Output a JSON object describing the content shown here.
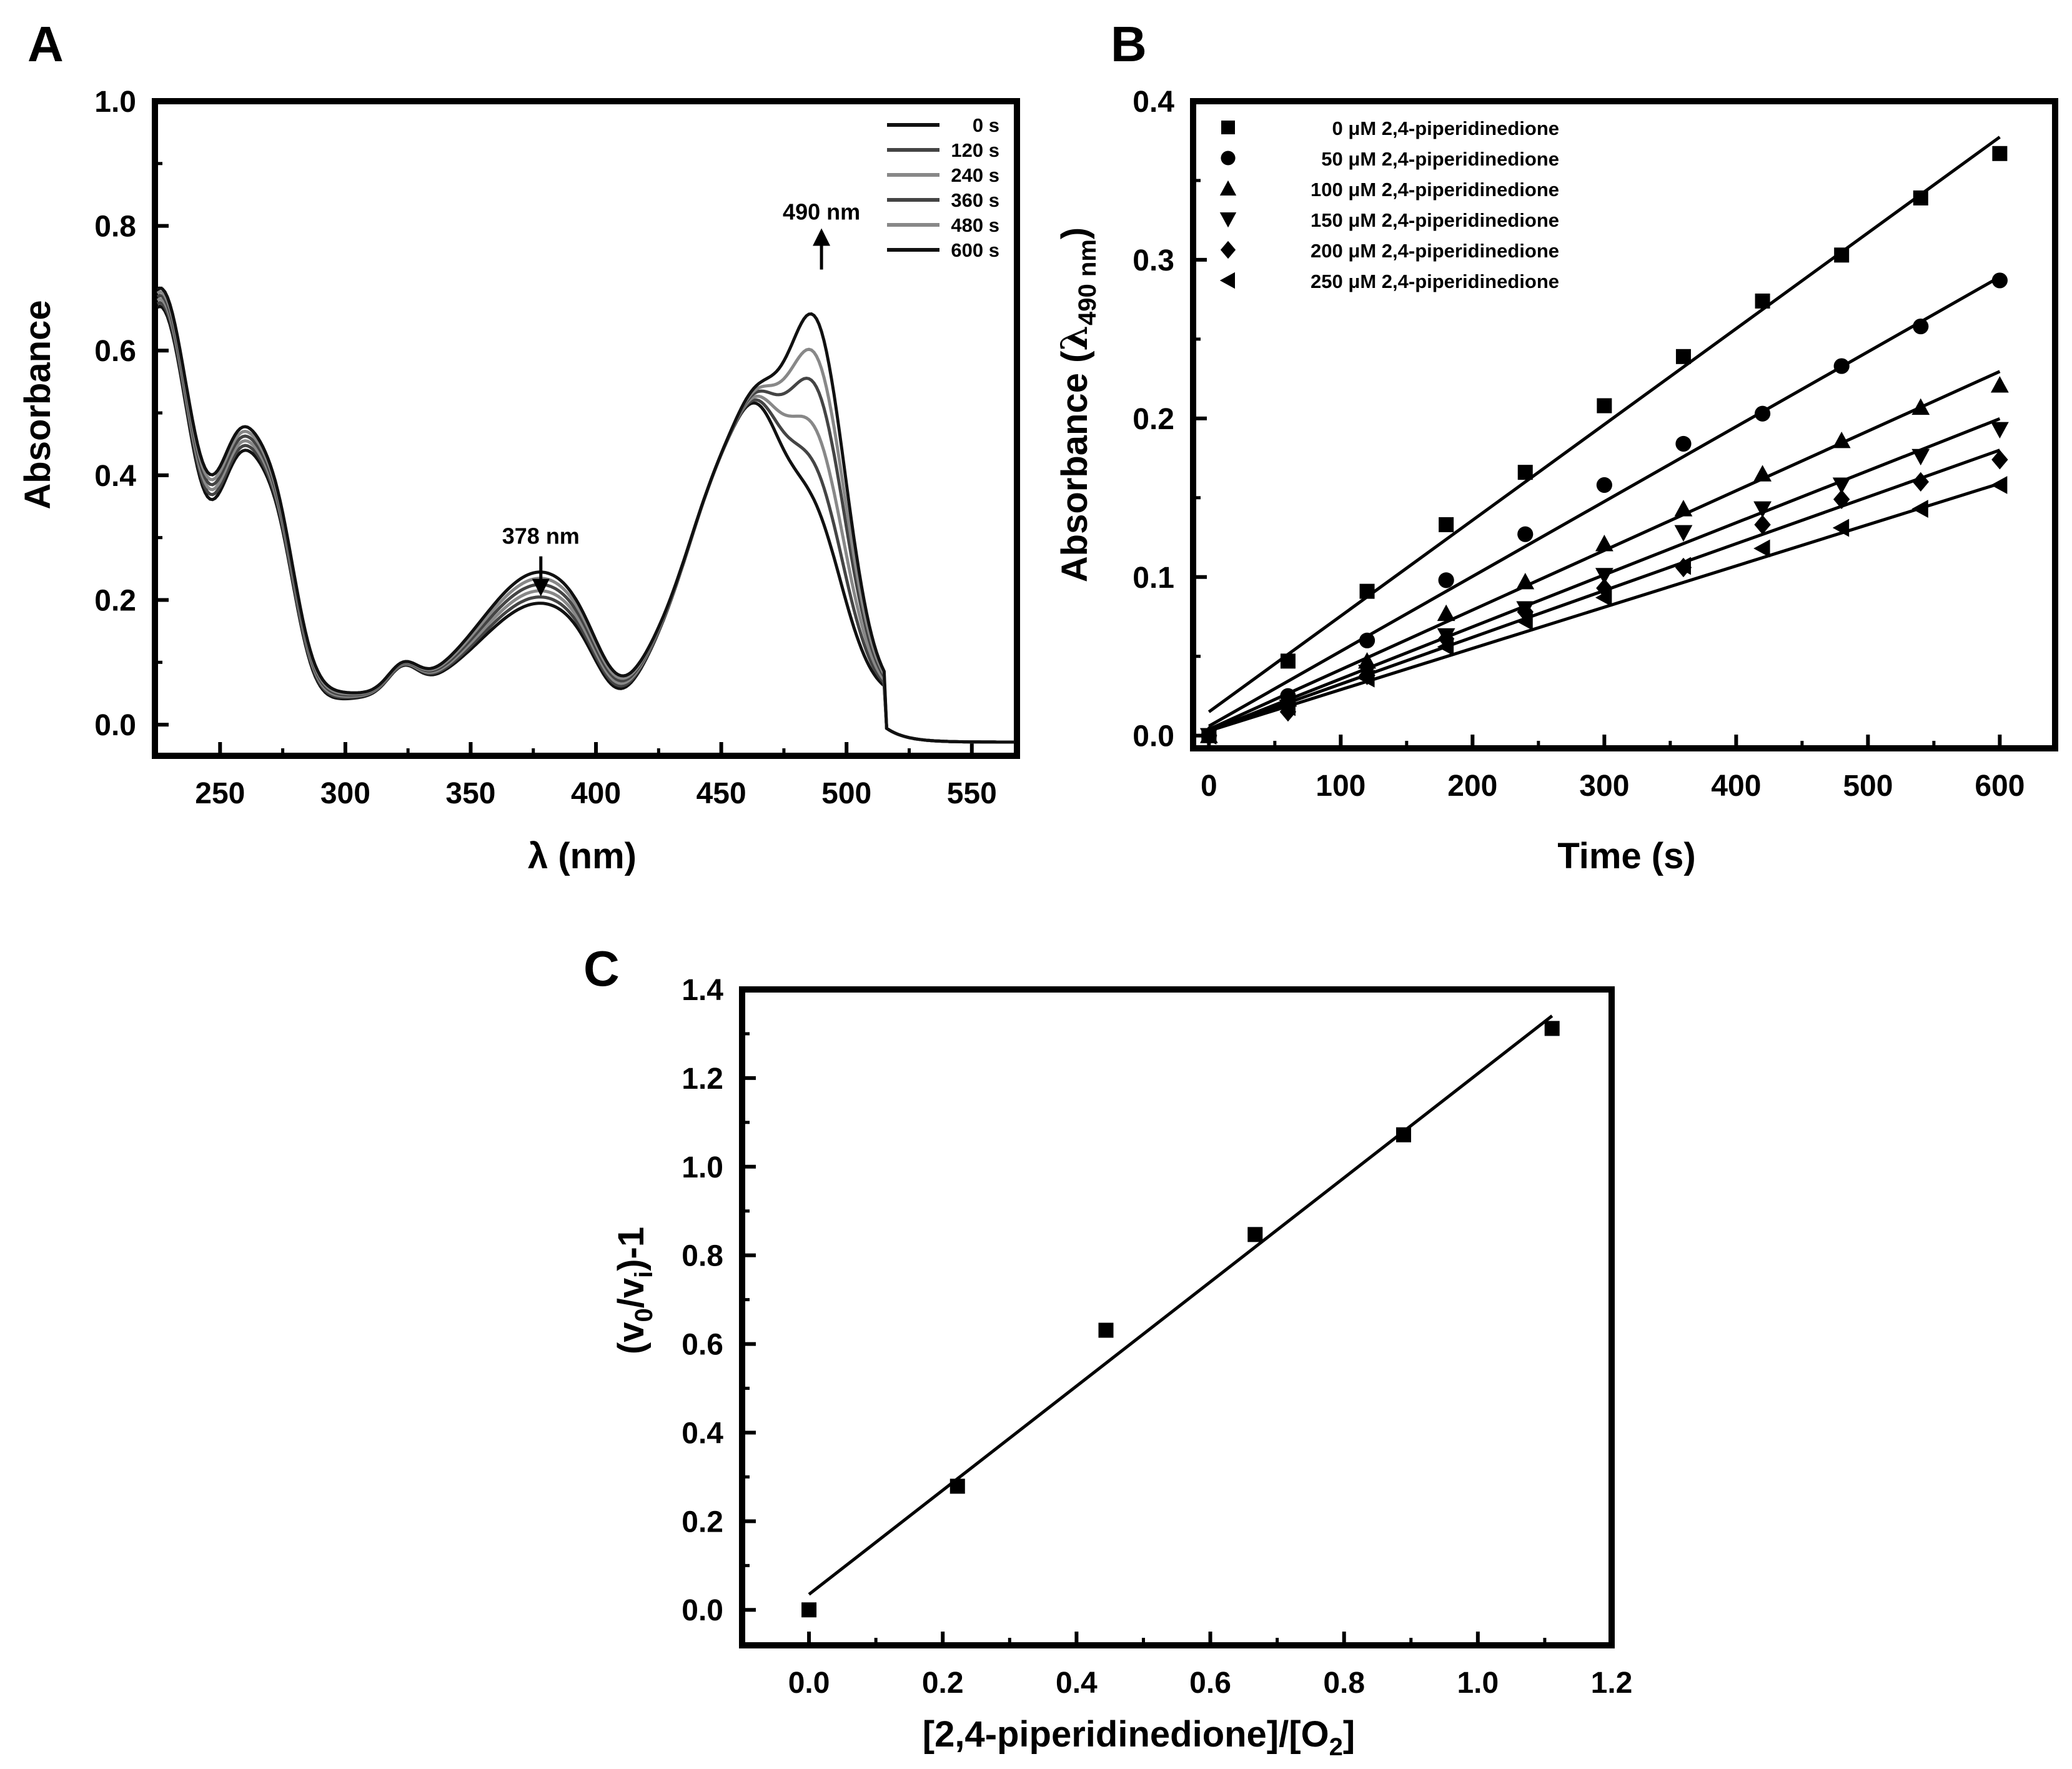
{
  "panels": {
    "A": {
      "letter": "A"
    },
    "B": {
      "letter": "B"
    },
    "C": {
      "letter": "C"
    }
  },
  "chart_data": [
    {
      "panel": "A",
      "type": "line",
      "xlabel": "λ (nm)",
      "ylabel": "Absorbance",
      "xlim": [
        224,
        568
      ],
      "ylim": [
        -0.05,
        1.0
      ],
      "xticks": [
        250,
        300,
        350,
        400,
        450,
        500,
        550
      ],
      "yticks": [
        0.0,
        0.2,
        0.4,
        0.6,
        0.8,
        1.0
      ],
      "ytick_labels": [
        "0.0",
        "0.2",
        "0.4",
        "0.6",
        "0.8",
        "1.0"
      ],
      "legend_position": "top-right",
      "series": [
        {
          "name": "0 s",
          "color": "#111111",
          "peak490": 0.35,
          "band378": 0.15
        },
        {
          "name": "120 s",
          "color": "#444444",
          "peak490": 0.41,
          "band378": 0.16
        },
        {
          "name": "240 s",
          "color": "#888888",
          "peak490": 0.47,
          "band378": 0.17
        },
        {
          "name": "360 s",
          "color": "#444444",
          "peak490": 0.54,
          "band378": 0.18
        },
        {
          "name": "480 s",
          "color": "#888888",
          "peak490": 0.59,
          "band378": 0.19
        },
        {
          "name": "600 s",
          "color": "#111111",
          "peak490": 0.65,
          "band378": 0.2
        }
      ],
      "annotations": [
        {
          "text": "490 nm",
          "x": 490,
          "y": 0.75,
          "arrow": "up"
        },
        {
          "text": "378 nm",
          "x": 378,
          "y": 0.3,
          "arrow": "down"
        }
      ]
    },
    {
      "panel": "B",
      "type": "scatter",
      "xlabel": "Time (s)",
      "ylabel_main": "Absorbance (",
      "ylabel_sym": "λ",
      "ylabel_sub": "490 nm",
      "ylabel_close": ")",
      "xlim": [
        -12,
        642
      ],
      "ylim": [
        -0.008,
        0.4
      ],
      "xticks": [
        0,
        100,
        200,
        300,
        400,
        500,
        600
      ],
      "yticks": [
        0.0,
        0.1,
        0.2,
        0.3,
        0.4
      ],
      "ytick_labels": [
        "0.0",
        "0.1",
        "0.2",
        "0.3",
        "0.4"
      ],
      "legend_position": "top-left",
      "x": [
        0,
        60,
        120,
        180,
        240,
        300,
        360,
        420,
        480,
        540,
        600
      ],
      "series": [
        {
          "name": "0 μM 2,4-piperidinedione",
          "marker": "square",
          "values": [
            0.0,
            0.047,
            0.091,
            0.133,
            0.166,
            0.208,
            0.239,
            0.274,
            0.303,
            0.339,
            0.367
          ],
          "fit": [
            0.015,
            0.000604
          ]
        },
        {
          "name": "50 μM 2,4-piperidinedione",
          "marker": "circle",
          "values": [
            0.0,
            0.025,
            0.06,
            0.098,
            0.127,
            0.158,
            0.184,
            0.203,
            0.233,
            0.258,
            0.287
          ],
          "fit": [
            0.006,
            0.000472
          ]
        },
        {
          "name": "100 μM 2,4-piperidinedione",
          "marker": "triangle-up",
          "values": [
            0.0,
            0.023,
            0.047,
            0.077,
            0.097,
            0.121,
            0.143,
            0.165,
            0.186,
            0.207,
            0.221
          ],
          "fit": [
            0.004,
            0.000376
          ]
        },
        {
          "name": "150 μM 2,4-piperidinedione",
          "marker": "triangle-down",
          "values": [
            0.0,
            0.018,
            0.04,
            0.063,
            0.08,
            0.101,
            0.128,
            0.143,
            0.158,
            0.176,
            0.193
          ],
          "fit": [
            0.003,
            0.000328
          ]
        },
        {
          "name": "200 μM 2,4-piperidinedione",
          "marker": "diamond",
          "values": [
            0.0,
            0.015,
            0.038,
            0.061,
            0.078,
            0.093,
            0.106,
            0.133,
            0.149,
            0.16,
            0.174
          ],
          "fit": [
            0.003,
            0.000295
          ]
        },
        {
          "name": "250 μM 2,4-piperidinedione",
          "marker": "triangle-left",
          "values": [
            0.0,
            0.018,
            0.036,
            0.056,
            0.072,
            0.087,
            0.107,
            0.118,
            0.131,
            0.143,
            0.158
          ],
          "fit": [
            0.003,
            0.00026
          ]
        }
      ]
    },
    {
      "panel": "C",
      "type": "scatter",
      "xlabel_main": "[2,4-piperidinedione]/[O",
      "xlabel_sub": "2",
      "xlabel_close": "]",
      "ylabel_a": "(v",
      "ylabel_sub0": "0",
      "ylabel_b": "/v",
      "ylabel_subi": "i",
      "ylabel_c": ")-1",
      "xlim": [
        -0.1,
        1.2
      ],
      "ylim": [
        -0.08,
        1.4
      ],
      "xticks": [
        0.0,
        0.2,
        0.4,
        0.6,
        0.8,
        1.0,
        1.2
      ],
      "xtick_labels": [
        "0.0",
        "0.2",
        "0.4",
        "0.6",
        "0.8",
        "1.0",
        "1.2"
      ],
      "yticks": [
        0.0,
        0.2,
        0.4,
        0.6,
        0.8,
        1.0,
        1.2,
        1.4
      ],
      "ytick_labels": [
        "0.0",
        "0.2",
        "0.4",
        "0.6",
        "0.8",
        "1.0",
        "1.2",
        "1.4"
      ],
      "x": [
        0.0,
        0.222,
        0.444,
        0.667,
        0.889,
        1.111
      ],
      "values": [
        0.0,
        0.279,
        0.631,
        0.847,
        1.072,
        1.312
      ],
      "fit": [
        0.035,
        1.175
      ]
    }
  ]
}
